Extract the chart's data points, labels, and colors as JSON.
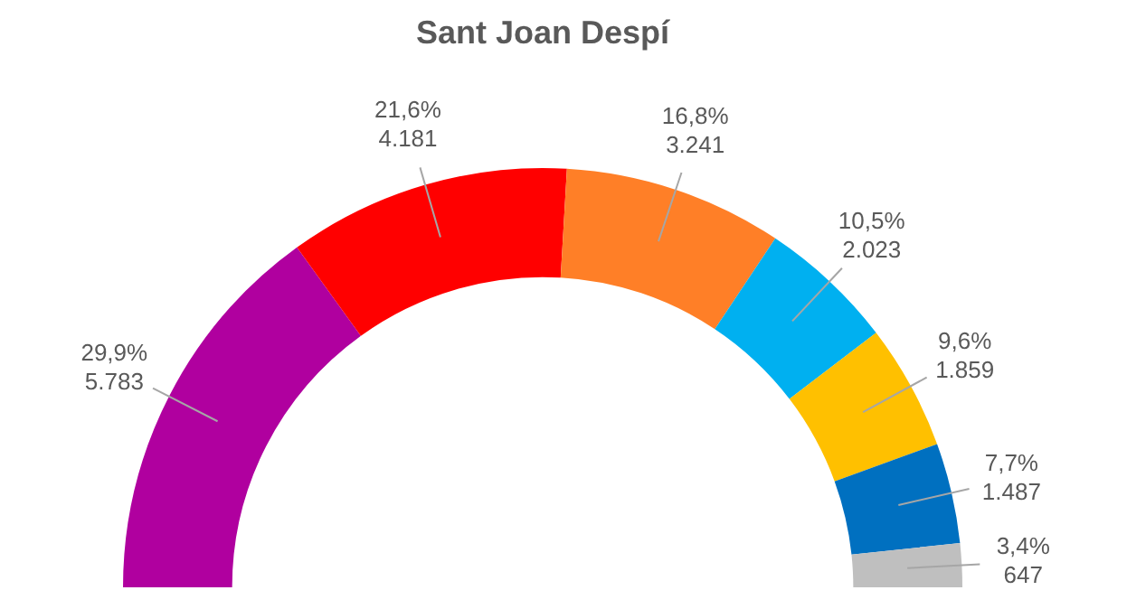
{
  "chart_data": {
    "type": "donut",
    "title": "Sant Joan Despí",
    "categories": [
      null,
      null,
      null,
      null,
      null,
      null,
      null
    ],
    "values": [
      5783,
      4181,
      3241,
      2023,
      1859,
      1487,
      647
    ],
    "colors": [
      "#b0009f",
      "#ff0000",
      "#ff7f27",
      "#00b0f0",
      "#ffc000",
      "#0070c0",
      "#bfbfbf"
    ],
    "value_labels": [
      "29,9%\n5.783",
      "21,6%\n4.181",
      "16,8%\n3.241",
      "10,5%\n2.023",
      "9,6%\n1.859",
      "7,7%\n1.487",
      "3,4%\n647"
    ],
    "legend": false
  }
}
